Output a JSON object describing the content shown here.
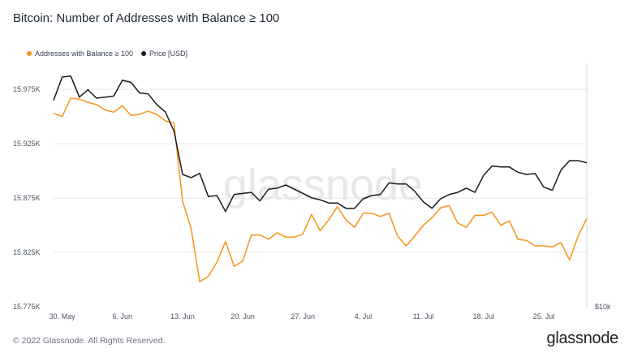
{
  "title": "Bitcoin: Number of Addresses with Balance ≥ 100",
  "footer": "© 2022 Glassnode. All Rights Reserved.",
  "brand": "glassnode",
  "watermark": "glassnode",
  "colors": {
    "addresses": "#f7931a",
    "price": "#1b1b1b",
    "grid": "#e5e7eb"
  },
  "chart_data": {
    "type": "line",
    "x_ticks": [
      "30. May",
      "6. Jun",
      "13. Jun",
      "20. Jun",
      "27. Jun",
      "4. Jul",
      "11. Jul",
      "18. Jul",
      "25. Jul"
    ],
    "y_ticks": [
      "15.975K",
      "15.925K",
      "15.875K",
      "15.825K",
      "15.775K"
    ],
    "y_right_ticks": [
      "$10k"
    ],
    "ylim": [
      15775,
      15999
    ],
    "legend": [
      {
        "name": "Addresses with Balance ≥ 100",
        "color": "#f7931a"
      },
      {
        "name": "Price [USD]",
        "color": "#1b1b1b"
      }
    ],
    "legend_position": "top-left",
    "series": [
      {
        "name": "Addresses with Balance ≥ 100",
        "axis": "left",
        "x": [
          "2022-05-29",
          "2022-05-30",
          "2022-05-31",
          "2022-06-01",
          "2022-06-02",
          "2022-06-03",
          "2022-06-04",
          "2022-06-05",
          "2022-06-06",
          "2022-06-07",
          "2022-06-08",
          "2022-06-09",
          "2022-06-10",
          "2022-06-11",
          "2022-06-12",
          "2022-06-13",
          "2022-06-14",
          "2022-06-15",
          "2022-06-16",
          "2022-06-17",
          "2022-06-18",
          "2022-06-19",
          "2022-06-20",
          "2022-06-21",
          "2022-06-22",
          "2022-06-23",
          "2022-06-24",
          "2022-06-25",
          "2022-06-26",
          "2022-06-27",
          "2022-06-28",
          "2022-06-29",
          "2022-06-30",
          "2022-07-01",
          "2022-07-02",
          "2022-07-03",
          "2022-07-04",
          "2022-07-05",
          "2022-07-06",
          "2022-07-07",
          "2022-07-08",
          "2022-07-09",
          "2022-07-10",
          "2022-07-11",
          "2022-07-12",
          "2022-07-13",
          "2022-07-14",
          "2022-07-15",
          "2022-07-16",
          "2022-07-17",
          "2022-07-18",
          "2022-07-19",
          "2022-07-20",
          "2022-07-21",
          "2022-07-22",
          "2022-07-23",
          "2022-07-24",
          "2022-07-25",
          "2022-07-26",
          "2022-07-27",
          "2022-07-28",
          "2022-07-29",
          "2022-07-30"
        ],
        "values": [
          15953,
          15950,
          15967,
          15966,
          15963,
          15961,
          15956,
          15954,
          15960,
          15951,
          15952,
          15955,
          15952,
          15946,
          15944,
          15872,
          15847,
          15798,
          15803,
          15816,
          15835,
          15812,
          15817,
          15841,
          15841,
          15837,
          15843,
          15839,
          15839,
          15842,
          15860,
          15845,
          15855,
          15867,
          15855,
          15848,
          15861,
          15861,
          15858,
          15861,
          15840,
          15831,
          15840,
          15850,
          15857,
          15866,
          15868,
          15852,
          15848,
          15859,
          15859,
          15862,
          15850,
          15854,
          15837,
          15836,
          15831,
          15831,
          15830,
          15834,
          15818,
          15840,
          15856
        ]
      },
      {
        "name": "Price [USD]",
        "axis": "right",
        "x": [
          "2022-05-29",
          "2022-05-30",
          "2022-05-31",
          "2022-06-01",
          "2022-06-02",
          "2022-06-03",
          "2022-06-04",
          "2022-06-05",
          "2022-06-06",
          "2022-06-07",
          "2022-06-08",
          "2022-06-09",
          "2022-06-10",
          "2022-06-11",
          "2022-06-12",
          "2022-06-13",
          "2022-06-14",
          "2022-06-15",
          "2022-06-16",
          "2022-06-17",
          "2022-06-18",
          "2022-06-19",
          "2022-06-20",
          "2022-06-21",
          "2022-06-22",
          "2022-06-23",
          "2022-06-24",
          "2022-06-25",
          "2022-06-26",
          "2022-06-27",
          "2022-06-28",
          "2022-06-29",
          "2022-06-30",
          "2022-07-01",
          "2022-07-02",
          "2022-07-03",
          "2022-07-04",
          "2022-07-05",
          "2022-07-06",
          "2022-07-07",
          "2022-07-08",
          "2022-07-09",
          "2022-07-10",
          "2022-07-11",
          "2022-07-12",
          "2022-07-13",
          "2022-07-14",
          "2022-07-15",
          "2022-07-16",
          "2022-07-17",
          "2022-07-18",
          "2022-07-19",
          "2022-07-20",
          "2022-07-21",
          "2022-07-22",
          "2022-07-23",
          "2022-07-24",
          "2022-07-25",
          "2022-07-26",
          "2022-07-27",
          "2022-07-28",
          "2022-07-29",
          "2022-07-30"
        ],
        "values": [
          29500,
          31700,
          31800,
          29800,
          30500,
          29700,
          29800,
          29900,
          31400,
          31200,
          30200,
          30100,
          29100,
          28400,
          26600,
          22500,
          22200,
          22600,
          20400,
          20500,
          19000,
          20600,
          20700,
          20800,
          20000,
          21100,
          21200,
          21500,
          21100,
          20700,
          20300,
          20100,
          19800,
          19800,
          19300,
          19300,
          20200,
          20500,
          20600,
          21700,
          21600,
          21600,
          20900,
          19900,
          19300,
          20200,
          20600,
          20800,
          21200,
          20800,
          22400,
          23300,
          23200,
          23200,
          22700,
          22500,
          22600,
          21300,
          21000,
          22900,
          23800,
          23800,
          23600
        ]
      }
    ]
  }
}
